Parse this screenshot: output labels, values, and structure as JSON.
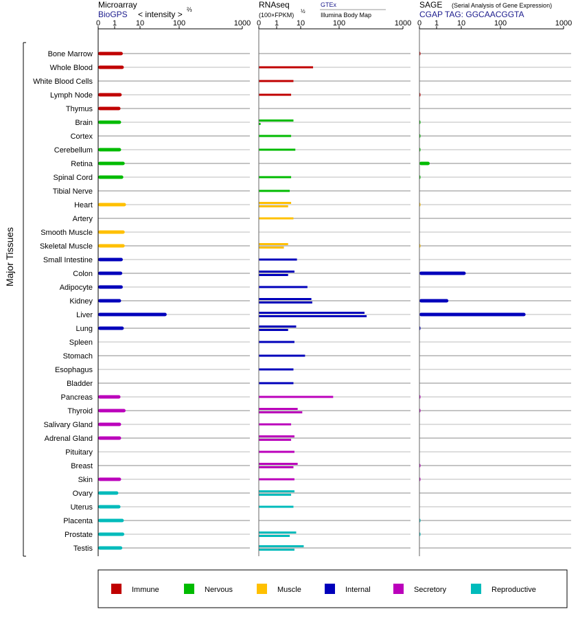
{
  "panels": {
    "microarray": {
      "title": "Microarray",
      "source": "BioGPS",
      "unit_label": "< intensity >",
      "unit_exponent": "⅔"
    },
    "rnaseq": {
      "title": "RNAseq",
      "unit_label": "(100×FPKM)",
      "unit_exponent": "½",
      "source_top": "GTEx",
      "source_bottom": "Illumina Body Map"
    },
    "sage": {
      "title": "SAGE",
      "subtitle": "(Serial Analysis of Gene Expression)",
      "tag_line": "CGAP TAG: GGCAACGGTA"
    }
  },
  "y_group_label": "Major Tissues",
  "colors": {
    "Immune": "#c00000",
    "Nervous": "#00bb00",
    "Muscle": "#ffc000",
    "Internal": "#0000bb",
    "Secretory": "#bb00bb",
    "Reproductive": "#00bbbb"
  },
  "legend": [
    "Immune",
    "Nervous",
    "Muscle",
    "Internal",
    "Secretory",
    "Reproductive"
  ],
  "chart_data": [
    {
      "type": "bar",
      "title": "Microarray",
      "xscale": "power 2/3",
      "xlim": [
        0,
        1000
      ],
      "xticks": [
        "0",
        "1",
        "10",
        "100",
        "1000"
      ],
      "categories": [
        "Bone Marrow",
        "Whole Blood",
        "White Blood Cells",
        "Lymph Node",
        "Thymus",
        "Brain",
        "Cortex",
        "Cerebellum",
        "Retina",
        "Spinal Cord",
        "Tibial Nerve",
        "Heart",
        "Artery",
        "Smooth Muscle",
        "Skeletal Muscle",
        "Small Intestine",
        "Colon",
        "Adipocyte",
        "Kidney",
        "Liver",
        "Lung",
        "Spleen",
        "Stomach",
        "Esophagus",
        "Bladder",
        "Pancreas",
        "Thyroid",
        "Salivary Gland",
        "Adrenal Gland",
        "Pituitary",
        "Breast",
        "Skin",
        "Ovary",
        "Uterus",
        "Placenta",
        "Prostate",
        "Testis"
      ],
      "groups": [
        "Immune",
        "Immune",
        "Immune",
        "Immune",
        "Immune",
        "Nervous",
        "Nervous",
        "Nervous",
        "Nervous",
        "Nervous",
        "Nervous",
        "Muscle",
        "Muscle",
        "Muscle",
        "Muscle",
        "Internal",
        "Internal",
        "Internal",
        "Internal",
        "Internal",
        "Internal",
        "Internal",
        "Internal",
        "Internal",
        "Internal",
        "Secretory",
        "Secretory",
        "Secretory",
        "Secretory",
        "Secretory",
        "Secretory",
        "Secretory",
        "Reproductive",
        "Reproductive",
        "Reproductive",
        "Reproductive",
        "Reproductive"
      ],
      "values": [
        2.1,
        2.3,
        null,
        1.9,
        1.7,
        1.8,
        null,
        1.8,
        2.5,
        2.2,
        null,
        2.8,
        null,
        2.5,
        2.5,
        2.1,
        2.0,
        2.1,
        1.8,
        48,
        2.3,
        null,
        null,
        null,
        null,
        1.7,
        2.7,
        1.8,
        1.8,
        null,
        null,
        1.8,
        1.4,
        1.7,
        2.3,
        2.4,
        2.0
      ]
    },
    {
      "type": "bar",
      "title": "RNAseq",
      "xscale": "power 1/2",
      "xlim": [
        0,
        1000
      ],
      "xticks": [
        "0",
        "1",
        "10",
        "100",
        "1000"
      ],
      "series": [
        {
          "name": "GTEx",
          "values": [
            null,
            20,
            null,
            null,
            null,
            null,
            null,
            null,
            null,
            null,
            null,
            null,
            null,
            null,
            5,
            null,
            6,
            12,
            18,
            340,
            null,
            null,
            null,
            null,
            null,
            null,
            null,
            null,
            null,
            null,
            null,
            null,
            null,
            null,
            null,
            null,
            null
          ]
        },
        {
          "name": "Illumina Body Map",
          "values": [
            null,
            null,
            null,
            null,
            null,
            null,
            null,
            null,
            null,
            null,
            null,
            null,
            null,
            null,
            null,
            null,
            null,
            null,
            null,
            null,
            null,
            null,
            null,
            null,
            null,
            null,
            null,
            null,
            null,
            null,
            null,
            null,
            null,
            null,
            null,
            null,
            null
          ]
        }
      ],
      "rows": [
        [],
        [
          21
        ],
        [
          5.0
        ],
        [
          4.0
        ],
        [],
        [
          5.0,
          0.1
        ],
        [
          4.0
        ],
        [
          6.0
        ],
        [],
        [
          4.0
        ],
        [
          3.5
        ],
        [
          4.0,
          3.0
        ],
        [
          5.0
        ],
        [],
        [
          3.0,
          2.0
        ],
        [
          7.0
        ],
        [
          5.5,
          3.0
        ],
        [
          15
        ],
        [
          19,
          20
        ],
        [
          250,
          270
        ],
        [
          6.5,
          3.0
        ],
        [
          5.5
        ],
        [
          13
        ],
        [
          5.0
        ],
        [
          5.0
        ],
        [
          70
        ],
        [
          7.5,
          11
        ],
        [
          4.0
        ],
        [
          5.5,
          4.0
        ],
        [
          5.5
        ],
        [
          7.5,
          5.0
        ],
        [
          5.5
        ],
        [
          5.5,
          4.0
        ],
        [
          5.0
        ],
        [],
        [
          6.5,
          3.5
        ],
        [
          12,
          5.5
        ]
      ]
    },
    {
      "type": "bar",
      "title": "SAGE",
      "xscale": "power 1/2",
      "xlim": [
        0,
        1000
      ],
      "xticks": [
        "0",
        "1",
        "10",
        "100",
        "1000"
      ],
      "values": [
        0.05,
        null,
        null,
        0.05,
        null,
        0.04,
        0.03,
        0.03,
        0.6,
        0.03,
        null,
        0.01,
        null,
        null,
        0.01,
        null,
        13,
        null,
        3,
        250,
        0.05,
        null,
        null,
        null,
        null,
        0.05,
        0.05,
        null,
        null,
        null,
        0.05,
        0.05,
        null,
        null,
        0.03,
        0.03,
        null
      ]
    }
  ]
}
